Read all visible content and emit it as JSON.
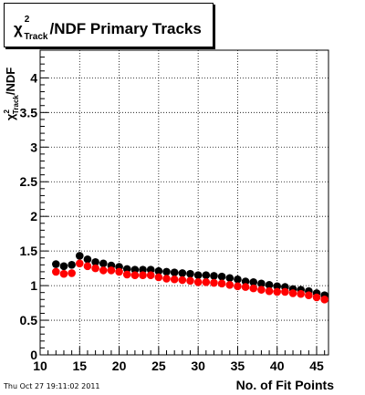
{
  "window": {
    "timestamp": "Thu Oct 27 19:11:02 2011"
  },
  "chart_data": {
    "type": "scatter",
    "title": {
      "symbol": "χ",
      "superscript": "2",
      "subscript": "Track",
      "text": "/NDF Primary Tracks"
    },
    "ylabel": {
      "symbol": "χ",
      "superscript": "2",
      "subscript": "Track",
      "text": "/NDF"
    },
    "xlabel": "No. of Fit Points",
    "xlim": [
      10,
      46.5
    ],
    "ylim": [
      0,
      4.4
    ],
    "xticks": [
      10,
      15,
      20,
      25,
      30,
      35,
      40,
      45
    ],
    "yticks": [
      0,
      0.5,
      1,
      1.5,
      2,
      2.5,
      3,
      3.5,
      4
    ],
    "ytick_labels": [
      "0",
      "0.5",
      "1",
      "1.5",
      "2",
      "2.5",
      "3",
      "3.5",
      "4"
    ],
    "grid": true,
    "x": [
      12,
      13,
      14,
      15,
      16,
      17,
      18,
      19,
      20,
      21,
      22,
      23,
      24,
      25,
      26,
      27,
      28,
      29,
      30,
      31,
      32,
      33,
      34,
      35,
      36,
      37,
      38,
      39,
      40,
      41,
      42,
      43,
      44,
      45,
      46
    ],
    "series": [
      {
        "color": "#000000",
        "values": [
          1.31,
          1.28,
          1.3,
          1.43,
          1.38,
          1.34,
          1.32,
          1.29,
          1.27,
          1.24,
          1.23,
          1.23,
          1.23,
          1.21,
          1.2,
          1.19,
          1.18,
          1.17,
          1.15,
          1.15,
          1.14,
          1.13,
          1.11,
          1.09,
          1.06,
          1.05,
          1.03,
          1.01,
          0.99,
          0.98,
          0.95,
          0.94,
          0.92,
          0.89,
          0.86
        ]
      },
      {
        "color": "#ff0000",
        "values": [
          1.2,
          1.17,
          1.18,
          1.32,
          1.28,
          1.25,
          1.22,
          1.22,
          1.2,
          1.16,
          1.15,
          1.15,
          1.15,
          1.12,
          1.1,
          1.09,
          1.08,
          1.07,
          1.05,
          1.05,
          1.04,
          1.03,
          1.01,
          0.99,
          0.98,
          0.96,
          0.94,
          0.92,
          0.91,
          0.91,
          0.89,
          0.88,
          0.86,
          0.83,
          0.8
        ]
      }
    ]
  }
}
